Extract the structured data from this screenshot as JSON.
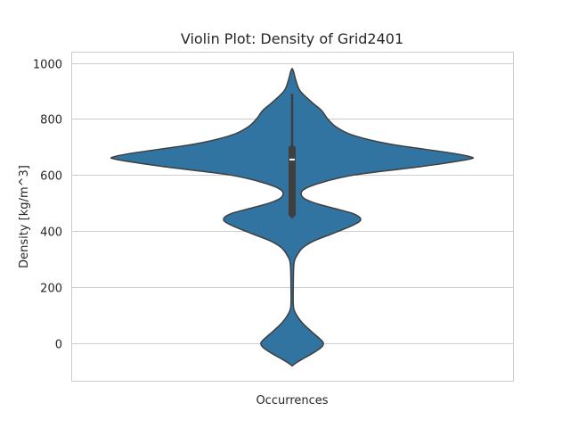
{
  "chart_data": {
    "type": "violin",
    "title": "Violin Plot: Density of Grid2401",
    "xlabel": "Occurrences",
    "ylabel": "Density [kg/m^3]",
    "ylim": [
      -135,
      1040
    ],
    "yticks": [
      0,
      200,
      400,
      600,
      800,
      1000
    ],
    "grid": "horizontal",
    "colors": {
      "fill": "#3274a1",
      "edge": "#3f3f3f",
      "grid": "#cccccc",
      "box": "#3f3f3f",
      "median": "#ffffff"
    },
    "box": {
      "min": 445,
      "q1": 450,
      "median": 655,
      "q3": 705,
      "whisker_high": 890
    },
    "density_profile": [
      {
        "y": -82,
        "w": 0
      },
      {
        "y": -70,
        "w": 5
      },
      {
        "y": -55,
        "w": 13
      },
      {
        "y": -35,
        "w": 24
      },
      {
        "y": -15,
        "w": 33
      },
      {
        "y": 0,
        "w": 35
      },
      {
        "y": 15,
        "w": 31
      },
      {
        "y": 40,
        "w": 22
      },
      {
        "y": 70,
        "w": 12
      },
      {
        "y": 100,
        "w": 5
      },
      {
        "y": 130,
        "w": 1.5
      },
      {
        "y": 200,
        "w": 1.3
      },
      {
        "y": 280,
        "w": 2
      },
      {
        "y": 310,
        "w": 5
      },
      {
        "y": 340,
        "w": 12
      },
      {
        "y": 365,
        "w": 25
      },
      {
        "y": 390,
        "w": 45
      },
      {
        "y": 420,
        "w": 68
      },
      {
        "y": 440,
        "w": 77
      },
      {
        "y": 460,
        "w": 70
      },
      {
        "y": 480,
        "w": 48
      },
      {
        "y": 500,
        "w": 25
      },
      {
        "y": 520,
        "w": 12
      },
      {
        "y": 545,
        "w": 12
      },
      {
        "y": 570,
        "w": 30
      },
      {
        "y": 600,
        "w": 70
      },
      {
        "y": 630,
        "w": 145
      },
      {
        "y": 655,
        "w": 197
      },
      {
        "y": 665,
        "w": 200
      },
      {
        "y": 680,
        "w": 175
      },
      {
        "y": 710,
        "w": 110
      },
      {
        "y": 740,
        "w": 70
      },
      {
        "y": 770,
        "w": 50
      },
      {
        "y": 800,
        "w": 40
      },
      {
        "y": 830,
        "w": 33
      },
      {
        "y": 860,
        "w": 22
      },
      {
        "y": 900,
        "w": 9
      },
      {
        "y": 940,
        "w": 4
      },
      {
        "y": 965,
        "w": 2
      },
      {
        "y": 980,
        "w": 0
      }
    ]
  }
}
